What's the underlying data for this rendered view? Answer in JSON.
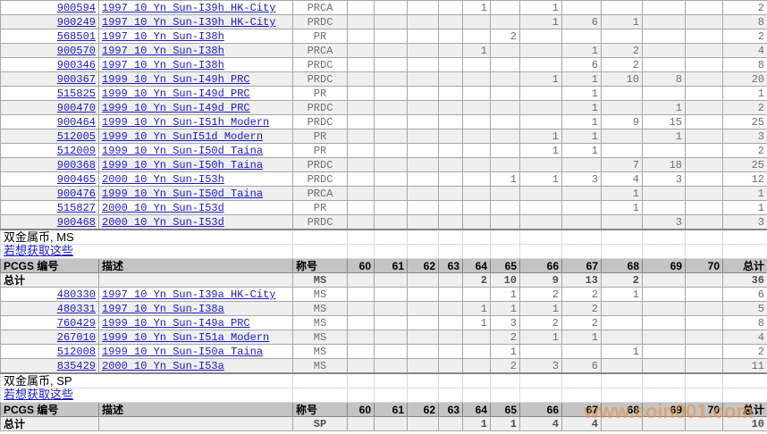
{
  "page": {
    "watermark": "www.coin001.com"
  },
  "colors": {
    "link_blue": "#1a18cc",
    "header_bg": "#c4c4c4",
    "alt_row_bg": "#efefef",
    "value_gray": "#6e6e6e",
    "grid_border": "#a6a6a6",
    "grid_border_dark": "#868686",
    "grid_border_light": "#d4dbe8",
    "watermark_orange": "#e98f3c"
  },
  "table": {
    "headers": {
      "pcgs": "PCGS 编号",
      "desc": "描述",
      "designation": "称号",
      "grades": [
        "60",
        "61",
        "62",
        "63",
        "64",
        "65",
        "66",
        "67",
        "68",
        "69",
        "70"
      ],
      "total": "总计"
    },
    "total_label": "总计",
    "rows": [
      {
        "type": "data",
        "pcgs": "900594",
        "desc": "1997 10 Yn Sun-I39h HK-City",
        "designation": "PRCA",
        "grades": [
          "",
          "",
          "",
          "",
          "1",
          "",
          "1",
          "",
          "",
          "",
          ""
        ],
        "total": "2"
      },
      {
        "type": "data",
        "pcgs": "900249",
        "desc": "1997 10 Yn Sun-I39h HK-City",
        "designation": "PRDC",
        "grades": [
          "",
          "",
          "",
          "",
          "",
          "",
          "1",
          "6",
          "1",
          "",
          ""
        ],
        "total": "8"
      },
      {
        "type": "data",
        "pcgs": "568501",
        "desc": "1997 10 Yn Sun-I38h",
        "designation": "PR",
        "grades": [
          "",
          "",
          "",
          "",
          "",
          "2",
          "",
          "",
          "",
          "",
          ""
        ],
        "total": "2"
      },
      {
        "type": "data",
        "pcgs": "900570",
        "desc": "1997 10 Yn Sun-I38h",
        "designation": "PRCA",
        "grades": [
          "",
          "",
          "",
          "",
          "1",
          "",
          "",
          "1",
          "2",
          "",
          ""
        ],
        "total": "4"
      },
      {
        "type": "data",
        "pcgs": "900346",
        "desc": "1997 10 Yn Sun-I38h",
        "designation": "PRDC",
        "grades": [
          "",
          "",
          "",
          "",
          "",
          "",
          "",
          "6",
          "2",
          "",
          ""
        ],
        "total": "8"
      },
      {
        "type": "data",
        "pcgs": "900367",
        "desc": "1999 10 Yn Sun-I49h PRC",
        "designation": "PRDC",
        "grades": [
          "",
          "",
          "",
          "",
          "",
          "",
          "1",
          "1",
          "10",
          "8",
          ""
        ],
        "total": "20"
      },
      {
        "type": "data",
        "pcgs": "515825",
        "desc": "1999 10 Yn Sun-I49d PRC",
        "designation": "PR",
        "grades": [
          "",
          "",
          "",
          "",
          "",
          "",
          "",
          "1",
          "",
          "",
          ""
        ],
        "total": "1"
      },
      {
        "type": "data",
        "pcgs": "900470",
        "desc": "1999 10 Yn Sun-I49d PRC",
        "designation": "PRDC",
        "grades": [
          "",
          "",
          "",
          "",
          "",
          "",
          "",
          "1",
          "",
          "1",
          ""
        ],
        "total": "2"
      },
      {
        "type": "data",
        "pcgs": "900464",
        "desc": "1999 10 Yn Sun-I51h Modern",
        "designation": "PRDC",
        "grades": [
          "",
          "",
          "",
          "",
          "",
          "",
          "",
          "1",
          "9",
          "15",
          ""
        ],
        "total": "25"
      },
      {
        "type": "data",
        "pcgs": "512005",
        "desc": "1999 10 Yn SunI51d Modern",
        "designation": "PR",
        "grades": [
          "",
          "",
          "",
          "",
          "",
          "",
          "1",
          "1",
          "",
          "1",
          ""
        ],
        "total": "3"
      },
      {
        "type": "data",
        "pcgs": "512009",
        "desc": "1999 10 Yn Sun-I50d Taina",
        "designation": "PR",
        "grades": [
          "",
          "",
          "",
          "",
          "",
          "",
          "1",
          "1",
          "",
          "",
          ""
        ],
        "total": "2"
      },
      {
        "type": "data",
        "pcgs": "900368",
        "desc": "1999 10 Yn Sun-I50h Taina",
        "designation": "PRDC",
        "grades": [
          "",
          "",
          "",
          "",
          "",
          "",
          "",
          "",
          "7",
          "18",
          ""
        ],
        "total": "25"
      },
      {
        "type": "data",
        "pcgs": "900465",
        "desc": "2000 10 Yn Sun-I53h",
        "designation": "PRDC",
        "grades": [
          "",
          "",
          "",
          "",
          "",
          "1",
          "1",
          "3",
          "4",
          "3",
          ""
        ],
        "total": "12"
      },
      {
        "type": "data",
        "pcgs": "900476",
        "desc": "1999 10 Yn Sun-I50d Taina",
        "designation": "PRCA",
        "grades": [
          "",
          "",
          "",
          "",
          "",
          "",
          "",
          "",
          "1",
          "",
          ""
        ],
        "total": "1"
      },
      {
        "type": "data",
        "pcgs": "515827",
        "desc": "2000 10 Yn Sun-I53d",
        "designation": "PR",
        "grades": [
          "",
          "",
          "",
          "",
          "",
          "",
          "",
          "",
          "1",
          "",
          ""
        ],
        "total": "1"
      },
      {
        "type": "data",
        "pcgs": "900468",
        "desc": "2000 10 Yn Sun-I53d",
        "designation": "PRDC",
        "grades": [
          "",
          "",
          "",
          "",
          "",
          "",
          "",
          "",
          "",
          "3",
          ""
        ],
        "total": "3"
      },
      {
        "type": "section",
        "label": "双金属币, MS"
      },
      {
        "type": "link",
        "label": "若想获取这些"
      },
      {
        "type": "header"
      },
      {
        "type": "total",
        "designation": "MS",
        "grades": [
          "",
          "",
          "",
          "",
          "2",
          "10",
          "9",
          "13",
          "2",
          "",
          ""
        ],
        "total": "36"
      },
      {
        "type": "data",
        "pcgs": "480330",
        "desc": "1997 10 Yn Sun-I39a HK-City",
        "designation": "MS",
        "grades": [
          "",
          "",
          "",
          "",
          "",
          "1",
          "2",
          "2",
          "1",
          "",
          ""
        ],
        "total": "6"
      },
      {
        "type": "data",
        "pcgs": "480331",
        "desc": "1997 10 Yn Sun-I38a",
        "designation": "MS",
        "grades": [
          "",
          "",
          "",
          "",
          "1",
          "1",
          "1",
          "2",
          "",
          "",
          ""
        ],
        "total": "5"
      },
      {
        "type": "data",
        "pcgs": "760429",
        "desc": "1999 10 Yn Sun-I49a PRC",
        "designation": "MS",
        "grades": [
          "",
          "",
          "",
          "",
          "1",
          "3",
          "2",
          "2",
          "",
          "",
          ""
        ],
        "total": "8"
      },
      {
        "type": "data",
        "pcgs": "267010",
        "desc": "1999 10 Yn Sun-I51a Modern",
        "designation": "MS",
        "grades": [
          "",
          "",
          "",
          "",
          "",
          "2",
          "1",
          "1",
          "",
          "",
          ""
        ],
        "total": "4"
      },
      {
        "type": "data",
        "pcgs": "512008",
        "desc": "1999 10 Yn Sun-I50a Taina",
        "designation": "MS",
        "grades": [
          "",
          "",
          "",
          "",
          "",
          "1",
          "",
          "",
          "1",
          "",
          ""
        ],
        "total": "2"
      },
      {
        "type": "data",
        "pcgs": "835429",
        "desc": "2000 10 Yn Sun-I53a",
        "designation": "MS",
        "grades": [
          "",
          "",
          "",
          "",
          "",
          "2",
          "3",
          "6",
          "",
          "",
          ""
        ],
        "total": "11"
      },
      {
        "type": "section",
        "label": "双金属币, SP"
      },
      {
        "type": "link",
        "label": "若想获取这些"
      },
      {
        "type": "header"
      },
      {
        "type": "total",
        "designation": "SP",
        "grades": [
          "",
          "",
          "",
          "",
          "1",
          "1",
          "4",
          "4",
          "",
          "",
          ""
        ],
        "total": "10"
      }
    ]
  }
}
